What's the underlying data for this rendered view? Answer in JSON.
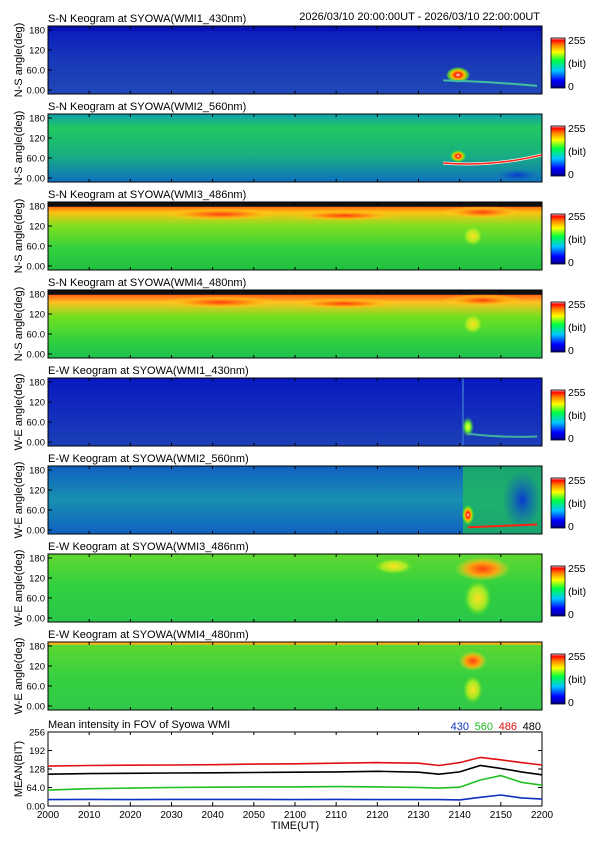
{
  "header": {
    "time_range": "2026/03/10 20:00:00UT - 2026/03/10 22:00:00UT"
  },
  "colorbar": {
    "max_label": "255",
    "unit_label": "(bit)",
    "min_label": "0"
  },
  "keograms": [
    {
      "title": "S-N Keogram at SYOWA(WMI1_430nm)",
      "ylabel": "N-S angle(deg)",
      "y_ticks": [
        "180",
        "120",
        "60.0",
        "0.00"
      ],
      "style": "430"
    },
    {
      "title": "S-N Keogram at SYOWA(WMI2_560nm)",
      "ylabel": "N-S angle(deg)",
      "y_ticks": [
        "180",
        "120",
        "60.0",
        "0.00"
      ],
      "style": "560"
    },
    {
      "title": "S-N Keogram at SYOWA(WMI3_486nm)",
      "ylabel": "N-S angle(deg)",
      "y_ticks": [
        "180",
        "120",
        "60.0",
        "0.00"
      ],
      "style": "486"
    },
    {
      "title": "S-N Keogram at SYOWA(WMI4_480nm)",
      "ylabel": "N-S angle(deg)",
      "y_ticks": [
        "180",
        "120",
        "60.0",
        "0.00"
      ],
      "style": "480"
    },
    {
      "title": "E-W Keogram at SYOWA(WMI1_430nm)",
      "ylabel": "W-E angle(deg)",
      "y_ticks": [
        "180",
        "120",
        "60.0",
        "0.00"
      ],
      "style": "430ew"
    },
    {
      "title": "E-W Keogram at SYOWA(WMI2_560nm)",
      "ylabel": "W-E angle(deg)",
      "y_ticks": [
        "180",
        "120",
        "60.0",
        "0.00"
      ],
      "style": "560ew"
    },
    {
      "title": "E-W Keogram at SYOWA(WMI3_486nm)",
      "ylabel": "W-E angle(deg)",
      "y_ticks": [
        "180",
        "120",
        "60.0",
        "0.00"
      ],
      "style": "486ew"
    },
    {
      "title": "E-W Keogram at SYOWA(WMI4_480nm)",
      "ylabel": "W-E angle(deg)",
      "y_ticks": [
        "180",
        "120",
        "60.0",
        "0.00"
      ],
      "style": "480ew"
    }
  ],
  "mean_panel": {
    "title": "Mean intensity in FOV of Syowa WMI",
    "ylabel": "MEAN(BIT)",
    "legend": [
      {
        "label": "430",
        "color": "#1030c0"
      },
      {
        "label": "560",
        "color": "#20c020"
      },
      {
        "label": "486",
        "color": "#e01010"
      },
      {
        "label": "480",
        "color": "#000000"
      }
    ]
  },
  "chart_data": {
    "type": "line",
    "title": "Mean intensity in FOV of Syowa WMI",
    "xlabel": "TIME(UT)",
    "ylabel": "MEAN(BIT)",
    "x_ticks": [
      "2000",
      "2010",
      "2020",
      "2030",
      "2040",
      "2050",
      "2100",
      "2110",
      "2120",
      "2130",
      "2140",
      "2150",
      "2200"
    ],
    "y_ticks": [
      "256",
      "192",
      "128",
      "64.0",
      "0.00"
    ],
    "xlim": [
      0,
      120
    ],
    "ylim": [
      0,
      256
    ],
    "x_minutes_after_2000": [
      0,
      10,
      20,
      30,
      40,
      50,
      60,
      70,
      80,
      90,
      95,
      100,
      105,
      110,
      115,
      120
    ],
    "series": [
      {
        "name": "430",
        "color": "#1030c0",
        "values": [
          22,
          23,
          22,
          23,
          23,
          23,
          22,
          23,
          22,
          22,
          22,
          21,
          30,
          38,
          28,
          24
        ]
      },
      {
        "name": "560",
        "color": "#20c020",
        "values": [
          55,
          60,
          62,
          64,
          65,
          66,
          66,
          67,
          66,
          64,
          62,
          65,
          90,
          105,
          82,
          72
        ]
      },
      {
        "name": "486",
        "color": "#e01010",
        "values": [
          138,
          140,
          141,
          142,
          143,
          145,
          146,
          148,
          150,
          148,
          140,
          150,
          168,
          160,
          150,
          142
        ]
      },
      {
        "name": "480",
        "color": "#000000",
        "values": [
          110,
          112,
          113,
          114,
          115,
          116,
          117,
          118,
          120,
          117,
          110,
          118,
          140,
          130,
          118,
          108
        ]
      }
    ]
  }
}
